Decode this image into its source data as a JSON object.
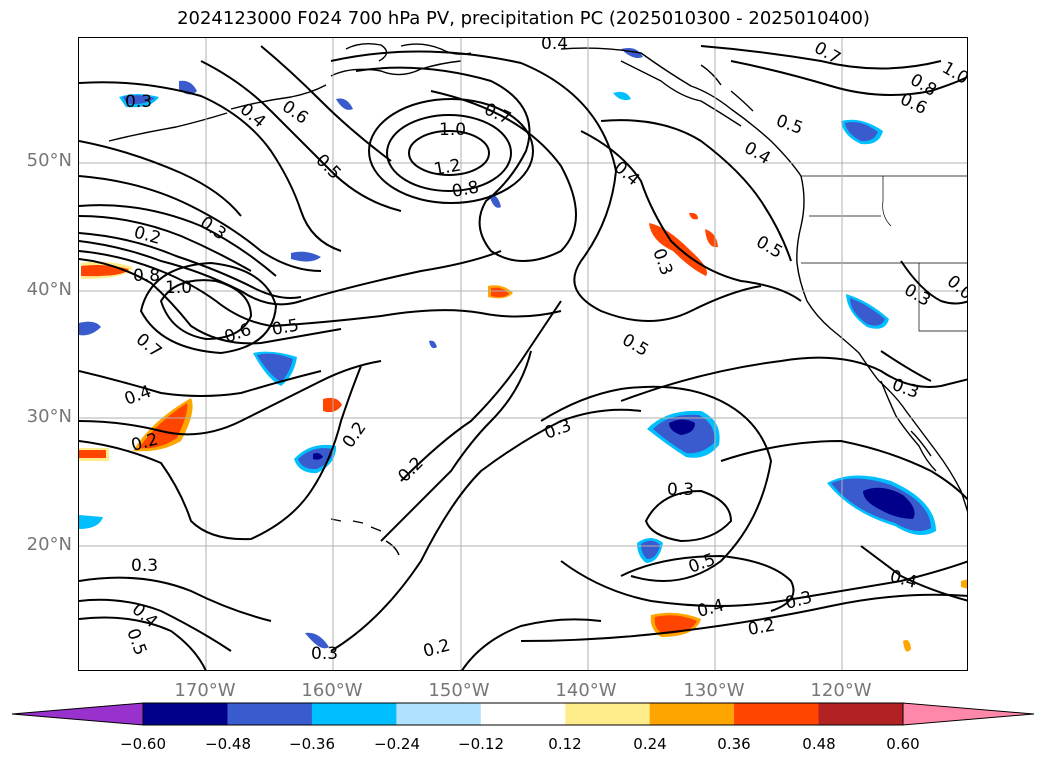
{
  "title": "2024123000 F024 700 hPa PV, precipitation PC (2025010300 - 2025010400)",
  "map": {
    "lat_labels": [
      "50°N",
      "40°N",
      "30°N",
      "20°N"
    ],
    "lon_labels": [
      "170°W",
      "160°W",
      "150°W",
      "140°W",
      "130°W",
      "120°W"
    ],
    "extent": {
      "lon": [
        -180,
        -110
      ],
      "lat": [
        10,
        60
      ]
    },
    "gridlines": true
  },
  "colorbar": {
    "ticks": [
      "−0.60",
      "−0.48",
      "−0.36",
      "−0.24",
      "−0.12",
      "0.12",
      "0.24",
      "0.36",
      "0.48",
      "0.60"
    ],
    "colors": [
      "#9932cc",
      "#00008b",
      "#3a5bcd",
      "#00bfff",
      "#b0e2ff",
      "#ffffff",
      "#ffec8b",
      "#ffa500",
      "#ff4500",
      "#b22222",
      "#ff88aa"
    ],
    "extend": "both"
  },
  "contour_labels": [
    {
      "id": "l01",
      "t": "0.4"
    },
    {
      "id": "l02",
      "t": "0.7"
    },
    {
      "id": "l03",
      "t": "1.0"
    },
    {
      "id": "l04",
      "t": "0.8"
    },
    {
      "id": "l05",
      "t": "0.6"
    },
    {
      "id": "l06",
      "t": "0.3"
    },
    {
      "id": "l07",
      "t": "0.4"
    },
    {
      "id": "l08",
      "t": "0.6"
    },
    {
      "id": "l09",
      "t": "0.5"
    },
    {
      "id": "l10",
      "t": "0.7"
    },
    {
      "id": "l11",
      "t": "1.0"
    },
    {
      "id": "l12",
      "t": "1.2"
    },
    {
      "id": "l13",
      "t": "0.8"
    },
    {
      "id": "l14",
      "t": "0.5"
    },
    {
      "id": "l15",
      "t": "0.4"
    },
    {
      "id": "l16",
      "t": "0.4"
    },
    {
      "id": "l17",
      "t": "0.3"
    },
    {
      "id": "l18",
      "t": "0.2"
    },
    {
      "id": "l19",
      "t": "0.8"
    },
    {
      "id": "l20",
      "t": "1.0"
    },
    {
      "id": "l21",
      "t": "0.7"
    },
    {
      "id": "l22",
      "t": "0.6"
    },
    {
      "id": "l23",
      "t": "0.5"
    },
    {
      "id": "l24",
      "t": "0.3"
    },
    {
      "id": "l25",
      "t": "0.5"
    },
    {
      "id": "l26",
      "t": "0.5"
    },
    {
      "id": "l27",
      "t": "0.3"
    },
    {
      "id": "l28",
      "t": "0.3"
    },
    {
      "id": "l29",
      "t": "0.0"
    },
    {
      "id": "l30",
      "t": "0.4"
    },
    {
      "id": "l31",
      "t": "0.2"
    },
    {
      "id": "l32",
      "t": "0.2"
    },
    {
      "id": "l33",
      "t": "0.2"
    },
    {
      "id": "l34",
      "t": "0.3"
    },
    {
      "id": "l35",
      "t": "0.3"
    },
    {
      "id": "l36",
      "t": "0.5"
    },
    {
      "id": "l37",
      "t": "0.4"
    },
    {
      "id": "l38",
      "t": "0.4"
    },
    {
      "id": "l39",
      "t": "0.3"
    },
    {
      "id": "l40",
      "t": "0.2"
    },
    {
      "id": "l41",
      "t": "0.3"
    },
    {
      "id": "l42",
      "t": "0.4"
    },
    {
      "id": "l43",
      "t": "0.5"
    },
    {
      "id": "l44",
      "t": "0.3"
    },
    {
      "id": "l45",
      "t": "0.2"
    }
  ]
}
